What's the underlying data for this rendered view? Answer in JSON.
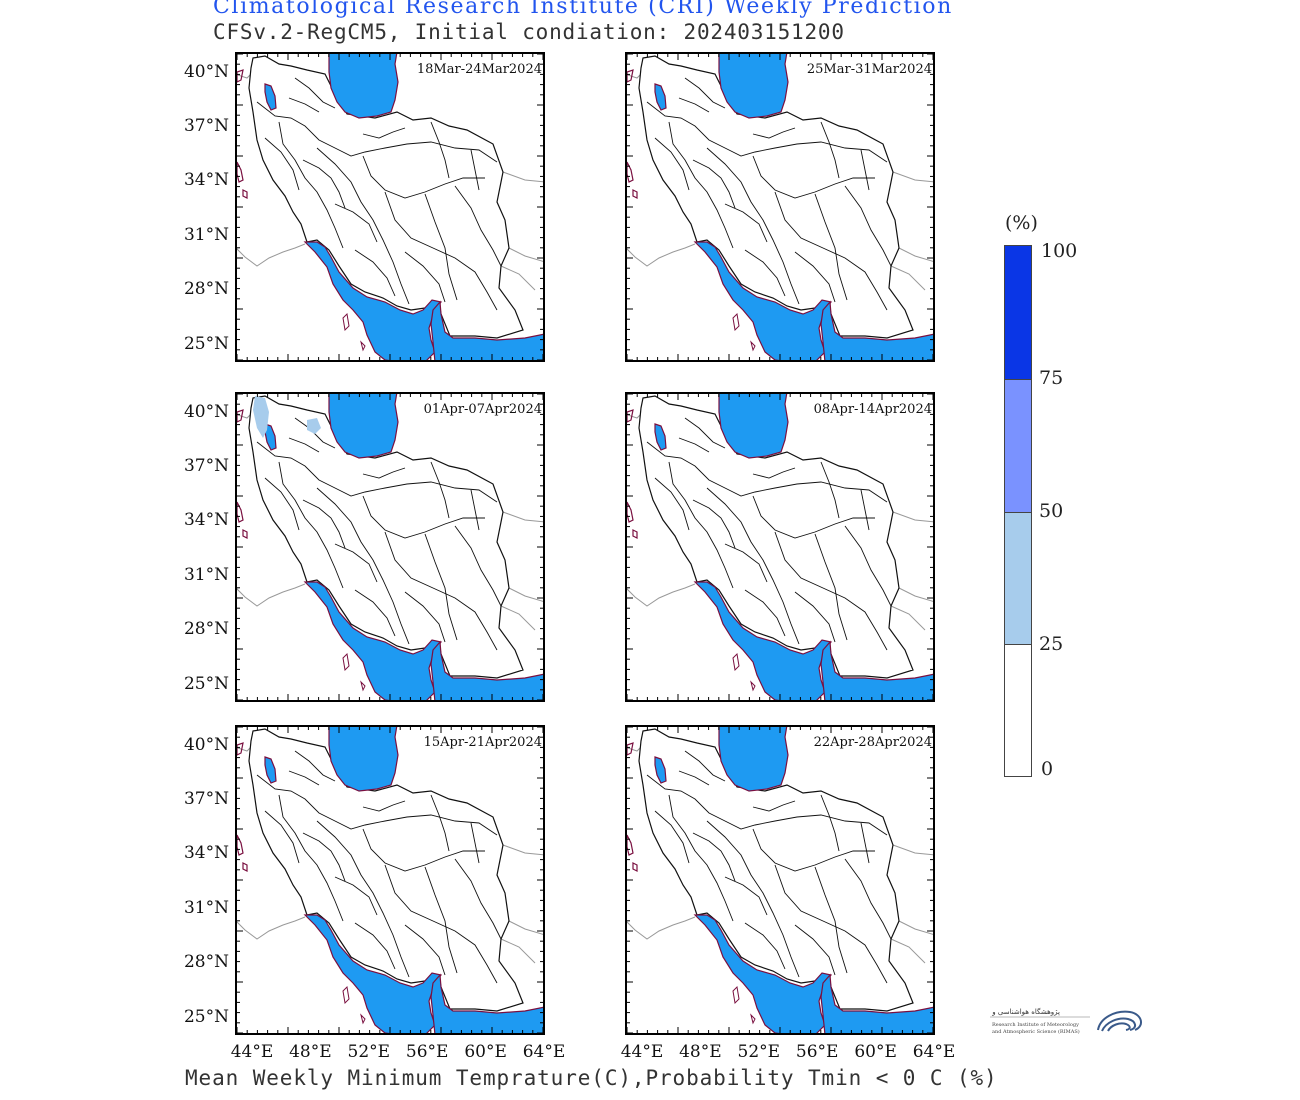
{
  "header": {
    "title": "Climatological Research Institute (CRI) Weekly Prediction",
    "subtitle": "CFSv.2-RegCM5, Initial condiation: 202403151200"
  },
  "caption": "Mean Weekly Minimum Temprature(C),Probability Tmin < 0 C (%)",
  "panels": [
    {
      "week": "18Mar-24Mar2024",
      "extra_prob_areas": false
    },
    {
      "week": "25Mar-31Mar2024",
      "extra_prob_areas": false
    },
    {
      "week": "01Apr-07Apr2024",
      "extra_prob_areas": true
    },
    {
      "week": "08Apr-14Apr2024",
      "extra_prob_areas": false
    },
    {
      "week": "15Apr-21Apr2024",
      "extra_prob_areas": false
    },
    {
      "week": "22Apr-28Apr2024",
      "extra_prob_areas": false
    }
  ],
  "axes": {
    "lat_labels": [
      "40°N",
      "37°N",
      "34°N",
      "31°N",
      "28°N",
      "25°N"
    ],
    "lon_labels": [
      "44°E",
      "48°E",
      "52°E",
      "56°E",
      "60°E",
      "64°E"
    ]
  },
  "colorbar": {
    "unit": "(%)",
    "labels": [
      "100",
      "75",
      "50",
      "25",
      "0"
    ],
    "colors": [
      "#0a36e6",
      "#7a92ff",
      "#a7ccec",
      "#ffffff"
    ],
    "water_color": "#1e9af2",
    "coast_color": "#7a1040"
  },
  "logo": {
    "text_fa": "پژوهشگاه هواشناسی و علوم جو",
    "text_en1": "Research Institute of Meteorology",
    "text_en2": "and Atmospheric Science (RIMAS)"
  }
}
